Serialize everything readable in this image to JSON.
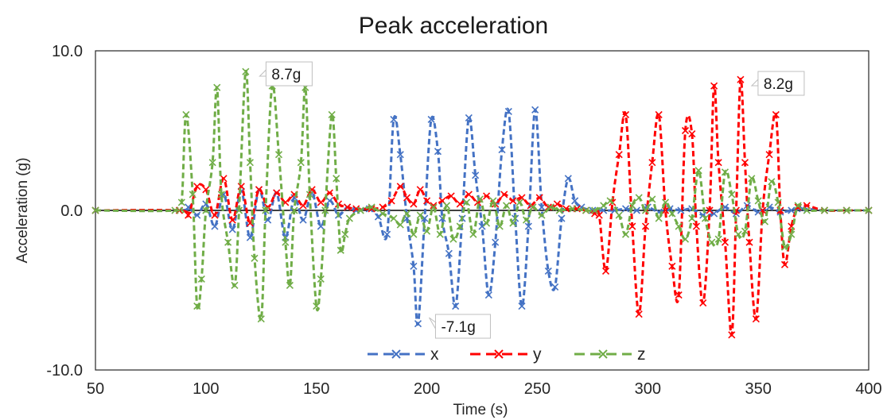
{
  "chart_data": {
    "type": "line",
    "title": "Peak acceleration",
    "xlabel": "Time (s)",
    "ylabel": "Acceleration (g)",
    "xlim": [
      50,
      400
    ],
    "ylim": [
      -10,
      10
    ],
    "x_ticks": [
      "50",
      "100",
      "150",
      "200",
      "250",
      "300",
      "350",
      "400"
    ],
    "y_ticks": [
      "10.0",
      "0.0",
      "-10.0"
    ],
    "legend_position": "bottom-center",
    "grid": false,
    "series": [
      {
        "name": "x",
        "color": "#4472C4",
        "points": [
          [
            50,
            0
          ],
          [
            88,
            0
          ],
          [
            92,
            0.2
          ],
          [
            96,
            -0.3
          ],
          [
            100,
            0.4
          ],
          [
            104,
            -1.0
          ],
          [
            108,
            1.0
          ],
          [
            112,
            -1.2
          ],
          [
            116,
            1.2
          ],
          [
            120,
            -1.7
          ],
          [
            124,
            1.3
          ],
          [
            128,
            -0.6
          ],
          [
            132,
            1.1
          ],
          [
            136,
            -1.7
          ],
          [
            140,
            0.8
          ],
          [
            144,
            -0.6
          ],
          [
            148,
            1.1
          ],
          [
            152,
            -1.0
          ],
          [
            156,
            0.6
          ],
          [
            160,
            -0.3
          ],
          [
            164,
            0.2
          ],
          [
            168,
            0
          ],
          [
            174,
            0.1
          ],
          [
            178,
            -0.4
          ],
          [
            182,
            -1.5
          ],
          [
            185,
            5.7
          ],
          [
            188,
            3.5
          ],
          [
            191,
            -0.5
          ],
          [
            194,
            -3.5
          ],
          [
            196,
            -7.1
          ],
          [
            199,
            -0.5
          ],
          [
            202,
            5.7
          ],
          [
            205,
            3.7
          ],
          [
            207,
            -0.5
          ],
          [
            210,
            -2.7
          ],
          [
            213,
            -6.0
          ],
          [
            216,
            -0.5
          ],
          [
            219,
            5.8
          ],
          [
            222,
            2.2
          ],
          [
            225,
            -1.0
          ],
          [
            228,
            -5.3
          ],
          [
            231,
            -2.0
          ],
          [
            234,
            3.8
          ],
          [
            237,
            6.2
          ],
          [
            240,
            -0.5
          ],
          [
            243,
            -6.0
          ],
          [
            246,
            -1.0
          ],
          [
            249,
            6.3
          ],
          [
            252,
            0.2
          ],
          [
            255,
            -3.8
          ],
          [
            258,
            -4.8
          ],
          [
            261,
            -0.5
          ],
          [
            264,
            2.0
          ],
          [
            267,
            0.6
          ],
          [
            270,
            0.2
          ],
          [
            275,
            0
          ],
          [
            280,
            0
          ],
          [
            285,
            0
          ],
          [
            290,
            0.1
          ],
          [
            295,
            0
          ],
          [
            300,
            0.2
          ],
          [
            305,
            -0.1
          ],
          [
            310,
            0.1
          ],
          [
            315,
            0
          ],
          [
            320,
            0.1
          ],
          [
            325,
            -0.3
          ],
          [
            330,
            -0.2
          ],
          [
            335,
            0.2
          ],
          [
            340,
            -0.2
          ],
          [
            345,
            0.3
          ],
          [
            350,
            -0.1
          ],
          [
            355,
            0.2
          ],
          [
            360,
            -0.1
          ],
          [
            365,
            0
          ],
          [
            370,
            0.1
          ],
          [
            380,
            0
          ],
          [
            390,
            0
          ],
          [
            400,
            0
          ]
        ]
      },
      {
        "name": "y",
        "color": "#FF0000",
        "points": [
          [
            50,
            0
          ],
          [
            88,
            0
          ],
          [
            92,
            -0.3
          ],
          [
            96,
            1.5
          ],
          [
            100,
            1.3
          ],
          [
            104,
            -0.3
          ],
          [
            108,
            2.0
          ],
          [
            112,
            -0.6
          ],
          [
            116,
            1.5
          ],
          [
            120,
            -0.8
          ],
          [
            124,
            1.3
          ],
          [
            128,
            0.2
          ],
          [
            132,
            1.1
          ],
          [
            136,
            0.5
          ],
          [
            140,
            1.0
          ],
          [
            144,
            0.3
          ],
          [
            148,
            1.3
          ],
          [
            152,
            0.5
          ],
          [
            156,
            1.1
          ],
          [
            160,
            0.4
          ],
          [
            164,
            0.2
          ],
          [
            168,
            0.1
          ],
          [
            175,
            0.1
          ],
          [
            180,
            0.2
          ],
          [
            184,
            0.6
          ],
          [
            188,
            1.5
          ],
          [
            191,
            0.8
          ],
          [
            194,
            0.4
          ],
          [
            197,
            1.3
          ],
          [
            200,
            0.6
          ],
          [
            203,
            0.3
          ],
          [
            207,
            0.6
          ],
          [
            211,
            0.9
          ],
          [
            215,
            0.4
          ],
          [
            219,
            1.0
          ],
          [
            223,
            0.5
          ],
          [
            227,
            0.9
          ],
          [
            231,
            0.4
          ],
          [
            235,
            1.0
          ],
          [
            239,
            0.6
          ],
          [
            243,
            0.8
          ],
          [
            247,
            0.3
          ],
          [
            251,
            0.8
          ],
          [
            255,
            0.2
          ],
          [
            259,
            0.4
          ],
          [
            263,
            0.1
          ],
          [
            268,
            0.1
          ],
          [
            272,
            0
          ],
          [
            276,
            -0.2
          ],
          [
            278,
            -0.3
          ],
          [
            281,
            -3.8
          ],
          [
            284,
            0.5
          ],
          [
            287,
            3.5
          ],
          [
            290,
            6.0
          ],
          [
            293,
            -1.0
          ],
          [
            296,
            -6.5
          ],
          [
            299,
            -1.0
          ],
          [
            302,
            3.0
          ],
          [
            305,
            6.0
          ],
          [
            308,
            0
          ],
          [
            311,
            -3.5
          ],
          [
            314,
            -5.3
          ],
          [
            317,
            5.0
          ],
          [
            320,
            4.8
          ],
          [
            322,
            -1.0
          ],
          [
            325,
            -5.8
          ],
          [
            328,
            0
          ],
          [
            330,
            7.8
          ],
          [
            332,
            3.0
          ],
          [
            335,
            -2.0
          ],
          [
            338,
            -7.8
          ],
          [
            340,
            0
          ],
          [
            342,
            8.2
          ],
          [
            344,
            3.0
          ],
          [
            346,
            -2.0
          ],
          [
            349,
            -6.8
          ],
          [
            352,
            0
          ],
          [
            355,
            3.5
          ],
          [
            358,
            6.0
          ],
          [
            360,
            0
          ],
          [
            362,
            -3.4
          ],
          [
            365,
            -1.0
          ],
          [
            368,
            0.2
          ],
          [
            372,
            0.3
          ],
          [
            380,
            0
          ],
          [
            390,
            0
          ],
          [
            400,
            0
          ]
        ]
      },
      {
        "name": "z",
        "color": "#70AD47",
        "points": [
          [
            50,
            0
          ],
          [
            86,
            0
          ],
          [
            89,
            0.5
          ],
          [
            91,
            6.0
          ],
          [
            94,
            1.0
          ],
          [
            96,
            -6.0
          ],
          [
            98,
            -4.3
          ],
          [
            100,
            0
          ],
          [
            103,
            3.0
          ],
          [
            105,
            7.7
          ],
          [
            107,
            1.0
          ],
          [
            110,
            -2.0
          ],
          [
            113,
            -4.7
          ],
          [
            115,
            0
          ],
          [
            118,
            8.7
          ],
          [
            120,
            3.0
          ],
          [
            122,
            -3.0
          ],
          [
            125,
            -6.8
          ],
          [
            127,
            0
          ],
          [
            130,
            7.8
          ],
          [
            133,
            3.5
          ],
          [
            136,
            -2.0
          ],
          [
            138,
            -4.7
          ],
          [
            140,
            0
          ],
          [
            143,
            3.0
          ],
          [
            145,
            7.7
          ],
          [
            147,
            1.0
          ],
          [
            150,
            -6.0
          ],
          [
            152,
            -4.3
          ],
          [
            154,
            0
          ],
          [
            157,
            6.0
          ],
          [
            159,
            2.0
          ],
          [
            161,
            -2.5
          ],
          [
            163,
            -1.5
          ],
          [
            165,
            -0.5
          ],
          [
            170,
            0
          ],
          [
            175,
            0.2
          ],
          [
            180,
            -0.2
          ],
          [
            185,
            -0.5
          ],
          [
            188,
            -0.9
          ],
          [
            191,
            -0.2
          ],
          [
            194,
            -1.5
          ],
          [
            197,
            -0.3
          ],
          [
            200,
            -1.3
          ],
          [
            203,
            0.2
          ],
          [
            206,
            -1.5
          ],
          [
            209,
            0.3
          ],
          [
            212,
            -1.8
          ],
          [
            215,
            -1.0
          ],
          [
            218,
            0.5
          ],
          [
            221,
            -1.5
          ],
          [
            224,
            0.7
          ],
          [
            227,
            -0.8
          ],
          [
            230,
            0.6
          ],
          [
            233,
            -1.0
          ],
          [
            236,
            0.3
          ],
          [
            239,
            -0.8
          ],
          [
            242,
            0.5
          ],
          [
            245,
            -0.6
          ],
          [
            248,
            0.2
          ],
          [
            252,
            -0.3
          ],
          [
            256,
            0.2
          ],
          [
            260,
            0
          ],
          [
            266,
            0.1
          ],
          [
            272,
            0
          ],
          [
            276,
            0
          ],
          [
            280,
            0.3
          ],
          [
            283,
            0.6
          ],
          [
            287,
            -0.3
          ],
          [
            290,
            -1.5
          ],
          [
            293,
            0.3
          ],
          [
            296,
            0.8
          ],
          [
            299,
            0
          ],
          [
            302,
            0.7
          ],
          [
            305,
            -0.5
          ],
          [
            308,
            0.5
          ],
          [
            311,
            -0.2
          ],
          [
            314,
            -1.0
          ],
          [
            317,
            -1.8
          ],
          [
            320,
            -0.5
          ],
          [
            323,
            2.5
          ],
          [
            326,
            -0.5
          ],
          [
            329,
            -2.0
          ],
          [
            332,
            -1.8
          ],
          [
            335,
            2.4
          ],
          [
            338,
            1.0
          ],
          [
            341,
            -1.5
          ],
          [
            344,
            -1.3
          ],
          [
            347,
            2.0
          ],
          [
            350,
            0.6
          ],
          [
            353,
            -0.7
          ],
          [
            356,
            1.8
          ],
          [
            359,
            0.5
          ],
          [
            362,
            -2.3
          ],
          [
            365,
            -1.5
          ],
          [
            368,
            0.3
          ],
          [
            372,
            0
          ],
          [
            380,
            0
          ],
          [
            390,
            0
          ],
          [
            400,
            0
          ]
        ]
      }
    ],
    "annotations": [
      {
        "text": "8.7g",
        "series": "z",
        "x": 120,
        "y": 8.7
      },
      {
        "text": "-7.1g",
        "series": "x",
        "x": 196,
        "y": -7.1
      },
      {
        "text": "8.2g",
        "series": "y",
        "x": 342,
        "y": 8.2
      }
    ]
  }
}
